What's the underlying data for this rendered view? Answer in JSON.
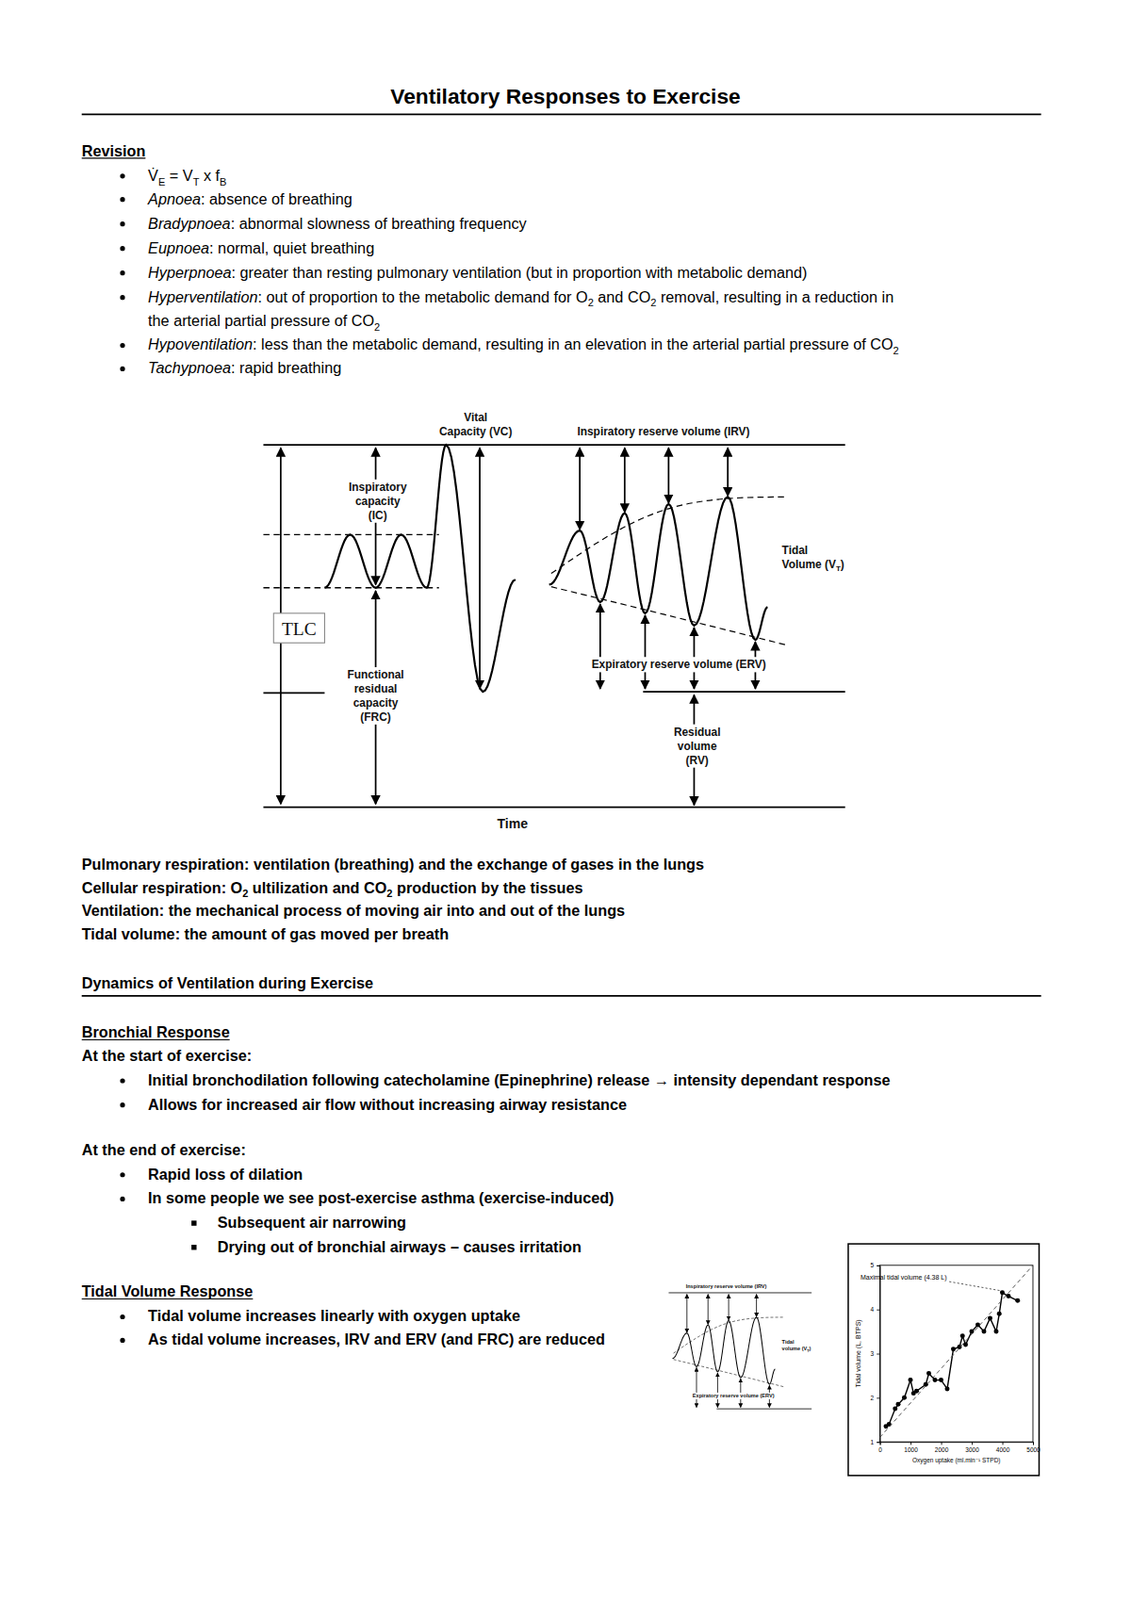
{
  "title": "Ventilatory Responses to Exercise",
  "revision": {
    "heading": "Revision",
    "items": [
      {
        "line": [
          {
            "text": "V̇"
          },
          {
            "text": "E",
            "style": "sub"
          },
          {
            "text": " = V"
          },
          {
            "text": "T",
            "style": "sub"
          },
          {
            "text": " x f"
          },
          {
            "text": "B",
            "style": "sub"
          }
        ]
      },
      {
        "line": [
          {
            "text": "Apnoea",
            "style": "italic"
          },
          {
            "text": ": absence of breathing"
          }
        ]
      },
      {
        "line": [
          {
            "text": "Bradypnoea",
            "style": "italic"
          },
          {
            "text": ": abnormal slowness of breathing frequency"
          }
        ]
      },
      {
        "line": [
          {
            "text": "Eupnoea",
            "style": "italic"
          },
          {
            "text": ": normal, quiet breathing"
          }
        ]
      },
      {
        "line": [
          {
            "text": "Hyperpnoea",
            "style": "italic"
          },
          {
            "text": ": greater than resting pulmonary ventilation (but in proportion with metabolic demand)"
          }
        ]
      },
      {
        "line": [
          {
            "text": "Hyperventilation",
            "style": "italic"
          },
          {
            "text": ": out of proportion to the metabolic demand for O"
          },
          {
            "text": "2",
            "style": "sub"
          },
          {
            "text": " and CO"
          },
          {
            "text": "2",
            "style": "sub"
          },
          {
            "text": " removal, resulting in a reduction in"
          }
        ],
        "cont": [
          {
            "text": "the arterial partial pressure of CO"
          },
          {
            "text": "2",
            "style": "sub"
          }
        ]
      },
      {
        "line": [
          {
            "text": "Hypoventilation",
            "style": "italic"
          },
          {
            "text": ": less than the metabolic demand, resulting in an elevation in the arterial partial pressure of CO"
          },
          {
            "text": "2",
            "style": "sub"
          }
        ]
      },
      {
        "line": [
          {
            "text": "Tachypnoea",
            "style": "italic"
          },
          {
            "text": ": rapid breathing"
          }
        ]
      }
    ]
  },
  "lung_diagram": {
    "vital_capacity": [
      "Vital",
      "Capacity (VC)"
    ],
    "irv": [
      "Inspiratory reserve volume (IRV)"
    ],
    "ic": [
      "Inspiratory",
      "capacity",
      "(IC)"
    ],
    "tidal_volume": [
      "Tidal",
      [
        {
          "text": "Volume (V"
        },
        {
          "text": "T",
          "style": "sub"
        },
        {
          "text": ")"
        }
      ]
    ],
    "tlc": [
      "TLC"
    ],
    "frc": [
      "Functional",
      "residual",
      "capacity",
      "(FRC)"
    ],
    "erv": [
      "Expiratory reserve volume (ERV)"
    ],
    "rv": [
      "Residual",
      "volume",
      "(RV)"
    ],
    "time": [
      "Time"
    ]
  },
  "definitions": [
    "Pulmonary respiration: ventilation (breathing) and the exchange of gases in the lungs",
    [
      {
        "text": "Cellular respiration: O"
      },
      {
        "text": "2",
        "style": "sub"
      },
      {
        "text": " ultilization and CO"
      },
      {
        "text": "2",
        "style": "sub"
      },
      {
        "text": " production by the tissues"
      }
    ],
    "Ventilation: the mechanical process of moving air into and out of the lungs",
    "Tidal volume: the amount of gas moved per breath"
  ],
  "dynamics": {
    "heading": "Dynamics of Ventilation during Exercise",
    "bronchial": {
      "heading": "Bronchial Response",
      "blocks": [
        {
          "label": "At the start of exercise:",
          "bullets": [
            {
              "text": "Initial bronchodilation following catecholamine (Epinephrine) release → intensity dependant response"
            },
            {
              "text": "Allows for increased air flow without increasing airway resistance"
            }
          ]
        },
        {
          "label": "At the end of exercise:",
          "bullets": [
            {
              "text": "Rapid loss of dilation"
            },
            {
              "text": "In some people we see post-exercise asthma (exercise-induced)",
              "subitems": [
                "Subsequent air narrowing",
                "Drying out of bronchial airways – causes irritation"
              ]
            }
          ]
        }
      ]
    },
    "tidal": {
      "heading": "Tidal Volume Response",
      "bullets": [
        {
          "text": "Tidal volume increases linearly with oxygen uptake"
        },
        {
          "text": "As tidal volume increases, IRV and ERV (and FRC) are reduced"
        }
      ]
    }
  },
  "thumbnail": {
    "irv": [
      "Inspiratory reserve volume (IRV)"
    ],
    "tidal_volume": [
      "Tidal",
      [
        {
          "text": "volume (V"
        },
        {
          "text": "T",
          "style": "sub"
        },
        {
          "text": ")"
        }
      ]
    ],
    "erv": [
      "Expiratory reserve volume (ERV)"
    ]
  },
  "chart_data": {
    "type": "line",
    "annotation": "Maximal tidal volume (4.38 L)",
    "xlabel": "Oxygen uptake (ml.min⁻¹ STPD)",
    "ylabel": "Tidal volume (L, BTPS)",
    "xlim": [
      0,
      5000
    ],
    "ylim": [
      1,
      5
    ],
    "xticks": [
      0,
      1000,
      2000,
      3000,
      4000,
      5000
    ],
    "yticks": [
      1,
      2,
      3,
      4,
      5
    ],
    "series": [
      {
        "x": [
          200,
          300,
          500,
          600,
          800,
          1000,
          1100,
          1200,
          1500,
          1600,
          1800,
          2000,
          2200,
          2400,
          2600,
          2700,
          2800,
          3000,
          3200,
          3400,
          3600,
          3800,
          3900,
          4000,
          4200,
          4500
        ],
        "values": [
          1.35,
          1.4,
          1.75,
          1.85,
          2.0,
          2.4,
          2.1,
          2.15,
          2.3,
          2.55,
          2.4,
          2.4,
          2.2,
          3.1,
          3.15,
          3.4,
          3.2,
          3.5,
          3.65,
          3.5,
          3.8,
          3.5,
          3.9,
          4.38,
          4.3,
          4.2
        ],
        "marker": "circle",
        "line_style": "solid",
        "color": "#000000"
      },
      {
        "x": [
          0,
          5000
        ],
        "values": [
          1.1,
          5.0
        ],
        "marker": "none",
        "line_style": "dashed",
        "color": "#555555"
      }
    ]
  }
}
